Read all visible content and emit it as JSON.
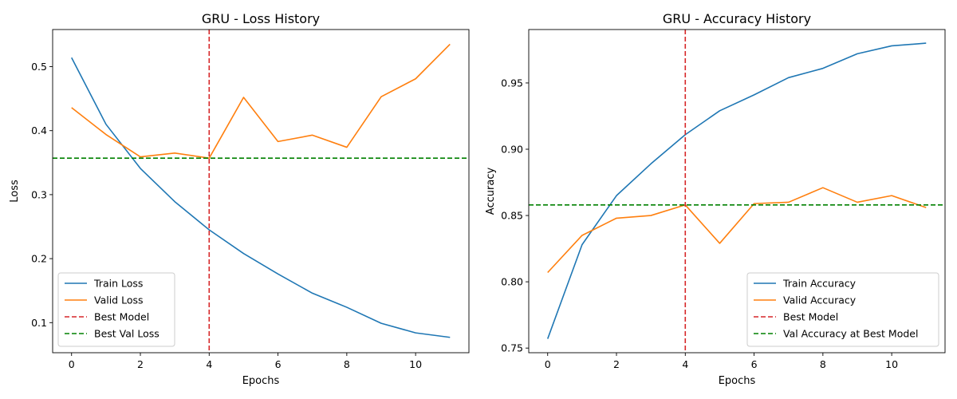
{
  "colors": {
    "train": "#1f77b4",
    "valid": "#ff7f0e",
    "best_model": "#d62728",
    "best_val": "#008000",
    "axis": "#000000",
    "legend_border": "#cccccc"
  },
  "chart_data": [
    {
      "type": "line",
      "title": "GRU - Loss History",
      "xlabel": "Epochs",
      "ylabel": "Loss",
      "xlim": [
        -0.55,
        11.55
      ],
      "ylim": [
        0.053,
        0.558
      ],
      "xticks": [
        0,
        2,
        4,
        6,
        8,
        10
      ],
      "xtick_labels": [
        "0",
        "2",
        "4",
        "6",
        "8",
        "10"
      ],
      "yticks": [
        0.1,
        0.2,
        0.3,
        0.4,
        0.5
      ],
      "ytick_labels": [
        "0.1",
        "0.2",
        "0.3",
        "0.4",
        "0.5"
      ],
      "grid": false,
      "legend_position": "lower-left",
      "x": [
        0,
        1,
        2,
        3,
        4,
        5,
        6,
        7,
        8,
        9,
        10,
        11
      ],
      "series": [
        {
          "name": "Train Loss",
          "color_key": "train",
          "values": [
            0.514,
            0.41,
            0.341,
            0.289,
            0.245,
            0.208,
            0.176,
            0.146,
            0.124,
            0.099,
            0.084,
            0.077
          ]
        },
        {
          "name": "Valid Loss",
          "color_key": "valid",
          "values": [
            0.436,
            0.394,
            0.359,
            0.365,
            0.357,
            0.452,
            0.383,
            0.393,
            0.374,
            0.453,
            0.481,
            0.535
          ]
        }
      ],
      "reference_lines": [
        {
          "name": "Best Model",
          "orientation": "vertical",
          "value": 4,
          "color_key": "best_model"
        },
        {
          "name": "Best Val Loss",
          "orientation": "horizontal",
          "value": 0.357,
          "color_key": "best_val"
        }
      ]
    },
    {
      "type": "line",
      "title": "GRU - Accuracy History",
      "xlabel": "Epochs",
      "ylabel": "Accuracy",
      "xlim": [
        -0.55,
        11.55
      ],
      "ylim": [
        0.7465,
        0.9903
      ],
      "xticks": [
        0,
        2,
        4,
        6,
        8,
        10
      ],
      "xtick_labels": [
        "0",
        "2",
        "4",
        "6",
        "8",
        "10"
      ],
      "yticks": [
        0.75,
        0.8,
        0.85,
        0.9,
        0.95
      ],
      "ytick_labels": [
        "0.75",
        "0.80",
        "0.85",
        "0.90",
        "0.95"
      ],
      "grid": false,
      "legend_position": "lower-right",
      "x": [
        0,
        1,
        2,
        3,
        4,
        5,
        6,
        7,
        8,
        9,
        10,
        11
      ],
      "series": [
        {
          "name": "Train Accuracy",
          "color_key": "train",
          "values": [
            0.757,
            0.828,
            0.865,
            0.889,
            0.911,
            0.929,
            0.941,
            0.954,
            0.961,
            0.972,
            0.978,
            0.98
          ]
        },
        {
          "name": "Valid Accuracy",
          "color_key": "valid",
          "values": [
            0.807,
            0.835,
            0.848,
            0.85,
            0.858,
            0.829,
            0.859,
            0.86,
            0.871,
            0.86,
            0.865,
            0.856
          ]
        }
      ],
      "reference_lines": [
        {
          "name": "Best Model",
          "orientation": "vertical",
          "value": 4,
          "color_key": "best_model"
        },
        {
          "name": "Val Accuracy at Best Model",
          "orientation": "horizontal",
          "value": 0.858,
          "color_key": "best_val"
        }
      ]
    }
  ]
}
